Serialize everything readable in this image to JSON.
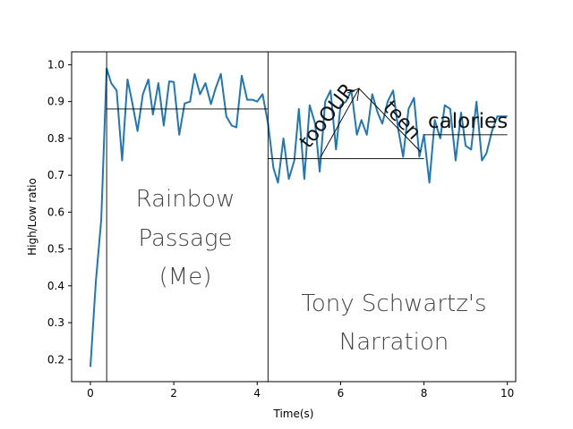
{
  "chart_data": {
    "type": "line",
    "xlabel": "Time(s)",
    "ylabel": "High/Low ratio",
    "xlim": [
      -0.45,
      10.2
    ],
    "ylim": [
      0.14,
      1.035
    ],
    "xticks": [
      0,
      2,
      4,
      6,
      8,
      10
    ],
    "yticks": [
      0.2,
      0.3,
      0.4,
      0.5,
      0.6,
      0.7,
      0.8,
      0.9,
      1.0
    ],
    "xtick_labels": [
      "0",
      "2",
      "4",
      "6",
      "8",
      "10"
    ],
    "ytick_labels": [
      "0.2",
      "0.3",
      "0.4",
      "0.5",
      "0.6",
      "0.7",
      "0.8",
      "0.9",
      "1.0"
    ],
    "grid": false,
    "line_color": "#1f77b4",
    "series": [
      {
        "x": [
          0.0,
          0.13,
          0.26,
          0.39,
          0.5,
          0.63,
          0.76,
          0.89,
          1.0,
          1.13,
          1.26,
          1.39,
          1.5,
          1.63,
          1.76,
          1.89,
          2.0,
          2.13,
          2.26,
          2.39,
          2.5,
          2.63,
          2.76,
          2.89,
          3.0,
          3.13,
          3.26,
          3.39,
          3.5,
          3.63,
          3.76,
          3.89,
          4.0,
          4.13,
          4.26,
          4.39,
          4.5,
          4.63,
          4.76,
          4.89,
          5.0,
          5.13,
          5.26,
          5.39,
          5.5,
          5.63,
          5.76,
          5.89,
          6.0,
          6.13,
          6.26,
          6.39,
          6.5,
          6.63,
          6.76,
          6.89,
          7.0,
          7.13,
          7.26,
          7.39,
          7.5,
          7.63,
          7.76,
          7.89,
          8.0,
          8.13,
          8.26,
          8.39,
          8.5,
          8.63,
          8.76,
          8.89,
          9.0,
          9.13,
          9.26,
          9.39,
          9.5,
          9.63,
          9.76,
          9.89,
          10.0
        ],
        "y": [
          0.18,
          0.41,
          0.58,
          0.99,
          0.95,
          0.93,
          0.74,
          0.96,
          0.9,
          0.82,
          0.92,
          0.96,
          0.865,
          0.95,
          0.835,
          0.955,
          0.953,
          0.81,
          0.895,
          0.9,
          0.975,
          0.92,
          0.95,
          0.893,
          0.935,
          0.975,
          0.86,
          0.835,
          0.83,
          0.97,
          0.905,
          0.905,
          0.9,
          0.92,
          0.84,
          0.72,
          0.68,
          0.8,
          0.69,
          0.74,
          0.88,
          0.69,
          0.89,
          0.84,
          0.71,
          0.9,
          0.93,
          0.77,
          0.89,
          0.9,
          0.93,
          0.81,
          0.85,
          0.81,
          0.92,
          0.87,
          0.84,
          0.9,
          0.93,
          0.82,
          0.75,
          0.88,
          0.91,
          0.75,
          0.81,
          0.68,
          0.85,
          0.8,
          0.89,
          0.88,
          0.74,
          0.87,
          0.78,
          0.77,
          0.9,
          0.74,
          0.76,
          0.82,
          0.86,
          0.86,
          0.86
        ]
      }
    ],
    "vlines": [
      0.39,
      4.26
    ],
    "hlines": [
      {
        "y": 0.88,
        "xmin": 0.39,
        "xmax": 4.26
      },
      {
        "y": 0.745,
        "xmin": 4.26,
        "xmax": 8.0
      },
      {
        "y": 0.81,
        "xmin": 8.0,
        "xmax": 10.0
      }
    ],
    "annotations": {
      "region1": [
        "Rainbow",
        "Passage",
        "(Me)"
      ],
      "region2": [
        "Tony Schwartz's",
        "Narration"
      ],
      "word_too": "tooOUR",
      "word_teen": "teen",
      "word_calories": "calories"
    }
  }
}
